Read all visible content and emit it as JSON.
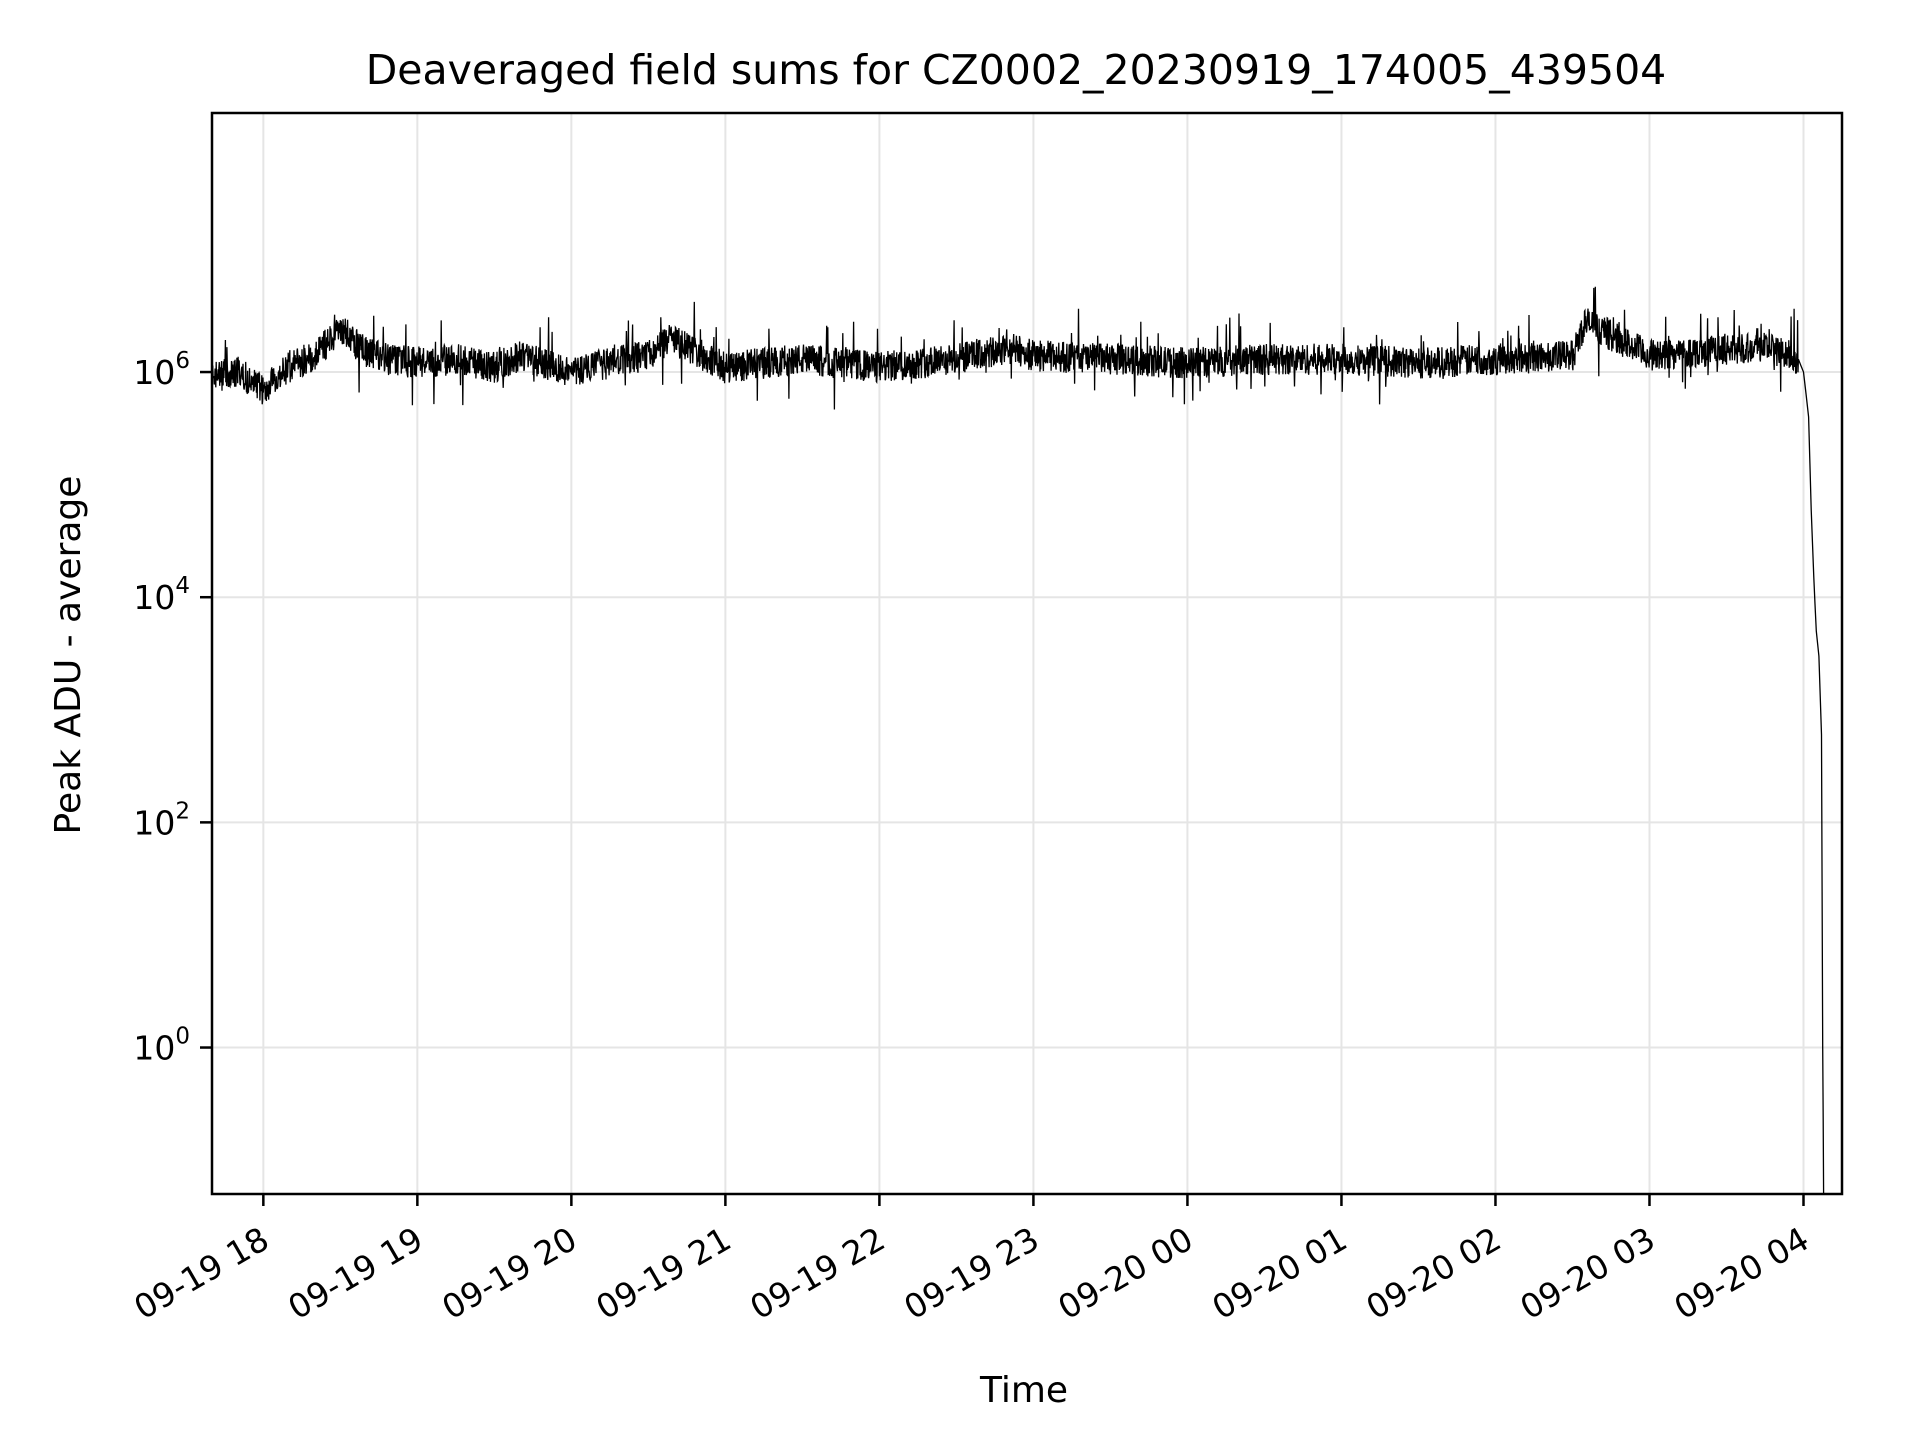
{
  "chart_data": {
    "type": "line",
    "title": "Deaveraged field sums for CZ0002_20230919_174005_439504",
    "xlabel": "Time",
    "ylabel": "Peak ADU - average",
    "yscale": "log",
    "ylim": [
      0.05,
      200000000
    ],
    "xlim": [
      "2023-09-19 17:40",
      "2023-09-20 04:15"
    ],
    "grid": true,
    "line_color": "#000000",
    "x_ticks": [
      {
        "value": "2023-09-19 18:00",
        "label": "09-19 18"
      },
      {
        "value": "2023-09-19 19:00",
        "label": "09-19 19"
      },
      {
        "value": "2023-09-19 20:00",
        "label": "09-19 20"
      },
      {
        "value": "2023-09-19 21:00",
        "label": "09-19 21"
      },
      {
        "value": "2023-09-19 22:00",
        "label": "09-19 22"
      },
      {
        "value": "2023-09-19 23:00",
        "label": "09-19 23"
      },
      {
        "value": "2023-09-20 00:00",
        "label": "09-20 00"
      },
      {
        "value": "2023-09-20 01:00",
        "label": "09-20 01"
      },
      {
        "value": "2023-09-20 02:00",
        "label": "09-20 02"
      },
      {
        "value": "2023-09-20 03:00",
        "label": "09-20 03"
      },
      {
        "value": "2023-09-20 04:00",
        "label": "09-20 04"
      }
    ],
    "y_ticks": [
      {
        "value": 1,
        "base": "10",
        "exp": "0"
      },
      {
        "value": 100,
        "base": "10",
        "exp": "2"
      },
      {
        "value": 10000,
        "base": "10",
        "exp": "4"
      },
      {
        "value": 1000000,
        "base": "10",
        "exp": "6"
      }
    ],
    "series": [
      {
        "x": [
          "2023-09-19 17:40",
          "2023-09-19 17:50",
          "2023-09-19 18:00",
          "2023-09-19 18:10",
          "2023-09-19 18:20",
          "2023-09-19 18:30",
          "2023-09-19 18:40",
          "2023-09-19 18:50",
          "2023-09-19 19:00",
          "2023-09-19 19:15",
          "2023-09-19 19:30",
          "2023-09-19 19:40",
          "2023-09-19 20:00",
          "2023-09-19 20:15",
          "2023-09-19 20:30",
          "2023-09-19 20:38",
          "2023-09-19 21:00",
          "2023-09-19 21:15",
          "2023-09-19 21:30",
          "2023-09-19 22:00",
          "2023-09-19 22:15",
          "2023-09-19 22:30",
          "2023-09-19 22:52",
          "2023-09-19 23:00",
          "2023-09-19 23:30",
          "2023-09-20 00:00",
          "2023-09-20 00:30",
          "2023-09-20 01:00",
          "2023-09-20 01:30",
          "2023-09-20 02:00",
          "2023-09-20 02:30",
          "2023-09-20 02:35",
          "2023-09-20 03:00",
          "2023-09-20 03:30",
          "2023-09-20 03:45",
          "2023-09-20 03:58",
          "2023-09-20 04:00",
          "2023-09-20 04:02",
          "2023-09-20 04:03",
          "2023-09-20 04:04",
          "2023-09-20 04:05",
          "2023-09-20 04:06",
          "2023-09-20 04:07",
          "2023-09-20 04:07:30",
          "2023-09-20 04:07:50"
        ],
        "y": [
          900000,
          1000000,
          700000,
          1100000,
          1400000,
          2500000,
          1500000,
          1300000,
          1200000,
          1300000,
          1100000,
          1400000,
          1000000,
          1200000,
          1400000,
          2000000,
          1100000,
          1200000,
          1300000,
          1100000,
          1200000,
          1300000,
          1600000,
          1400000,
          1300000,
          1200000,
          1300000,
          1300000,
          1200000,
          1300000,
          1400000,
          2800000,
          1400000,
          1600000,
          1700000,
          1300000,
          1000000,
          400000,
          60000,
          15000,
          5000,
          3000,
          600,
          1,
          0.05
        ]
      }
    ]
  }
}
